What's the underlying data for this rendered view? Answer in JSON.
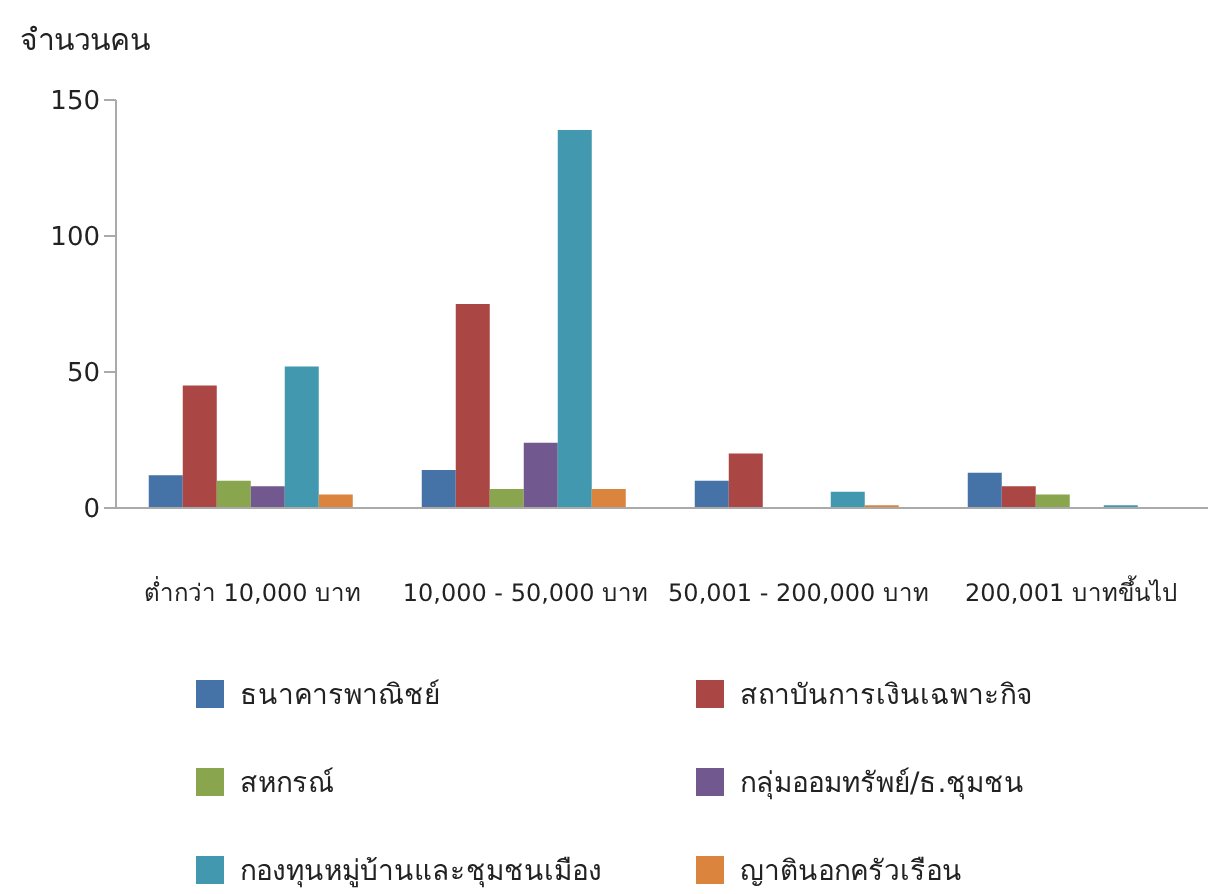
{
  "chart_data": {
    "type": "bar",
    "ylabel": "จำนวนคน",
    "categories": [
      "ต่ำกว่า 10,000 บาท",
      "10,000 - 50,000 บาท",
      "50,001 - 200,000 บาท",
      "200,001 บาทขึ้นไป"
    ],
    "series": [
      {
        "name": "ธนาคารพาณิชย์",
        "color": "#4572a7",
        "values": [
          12,
          14,
          10,
          13
        ]
      },
      {
        "name": "สถาบันการเงินเฉพาะกิจ",
        "color": "#aa4643",
        "values": [
          45,
          75,
          20,
          8
        ]
      },
      {
        "name": "สหกรณ์",
        "color": "#89a54e",
        "values": [
          10,
          7,
          0,
          5
        ]
      },
      {
        "name": "กลุ่มออมทรัพย์/ธ.ชุมชน",
        "color": "#71588f",
        "values": [
          8,
          24,
          0,
          0
        ]
      },
      {
        "name": "กองทุนหมู่บ้านและชุมชนเมือง",
        "color": "#4198af",
        "values": [
          52,
          139,
          6,
          1
        ]
      },
      {
        "name": "ญาตินอกครัวเรือน",
        "color": "#db843d",
        "values": [
          5,
          7,
          1,
          0
        ]
      }
    ],
    "ylim": [
      0,
      150
    ],
    "yticks": [
      0,
      50,
      100,
      150
    ],
    "grid": false,
    "legend": "bottom"
  }
}
